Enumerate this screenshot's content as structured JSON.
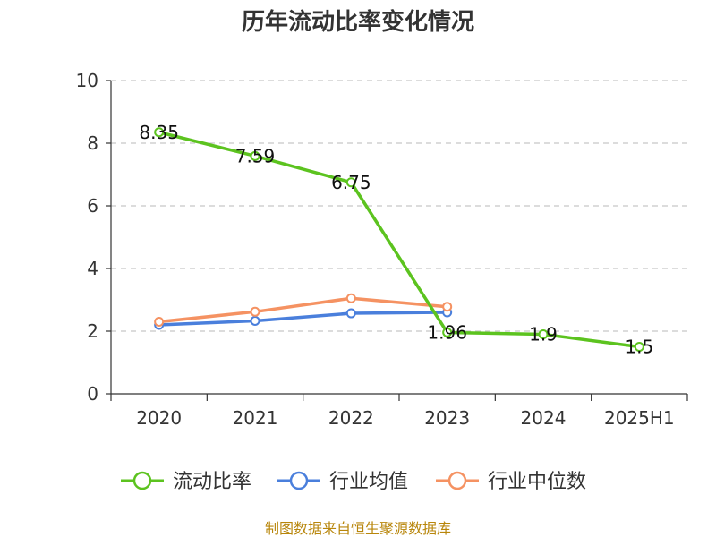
{
  "chart_data": {
    "type": "line",
    "title": "历年流动比率变化情况",
    "categories": [
      "2020",
      "2021",
      "2022",
      "2023",
      "2024",
      "2025H1"
    ],
    "ylim": [
      0,
      10
    ],
    "yticks": [
      "0",
      "2",
      "4",
      "6",
      "8",
      "10"
    ],
    "grid": true,
    "legend_position": "bottom",
    "series": [
      {
        "name": "流动比率",
        "color": "#5cc31f",
        "values": [
          8.35,
          7.59,
          6.75,
          1.96,
          1.9,
          1.5
        ],
        "labels": [
          "8.35",
          "7.59",
          "6.75",
          "1.96",
          "1.9",
          "1.5"
        ]
      },
      {
        "name": "行业均值",
        "color": "#4a7fdc",
        "values": [
          2.2,
          2.33,
          2.57,
          2.6,
          null,
          null
        ]
      },
      {
        "name": "行业中位数",
        "color": "#f59262",
        "values": [
          2.3,
          2.62,
          3.05,
          2.78,
          null,
          null
        ]
      }
    ],
    "source": "制图数据来自恒生聚源数据库"
  }
}
